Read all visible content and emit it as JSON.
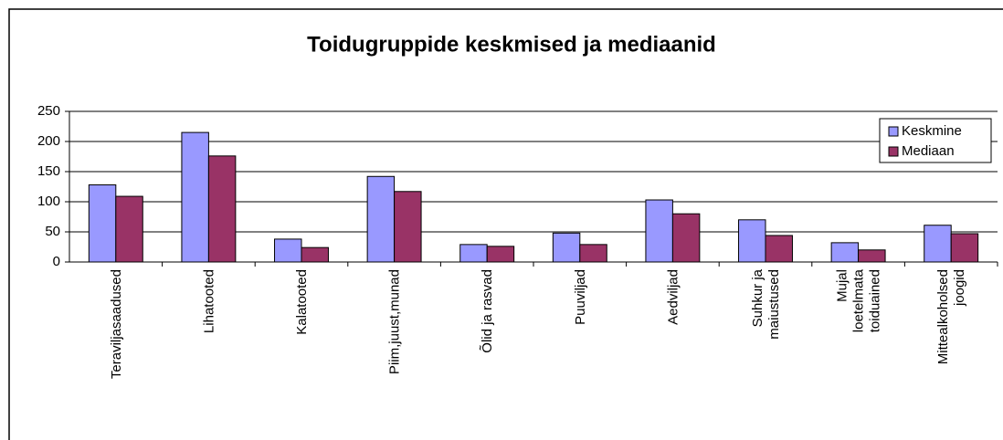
{
  "chart_data": {
    "type": "bar",
    "title": "Toidugruppide keskmised ja mediaanid",
    "categories": [
      "Teraviljasaadused",
      "Lihatooted",
      "Kalatooted",
      "Piim,juust,munad",
      "Õlid ja rasvad",
      "Puuviljad",
      "Aedviljad",
      "Suhkur ja\nmaiustused",
      "Mujal\nloetelmata\ntoiduained",
      "Mittealkoholsed\njoogid"
    ],
    "series": [
      {
        "name": "Keskmine",
        "color": "#9999ff",
        "values": [
          128,
          215,
          38,
          142,
          29,
          48,
          103,
          70,
          32,
          61
        ]
      },
      {
        "name": "Mediaan",
        "color": "#993366",
        "values": [
          109,
          176,
          24,
          117,
          26,
          29,
          80,
          44,
          20,
          47
        ]
      }
    ],
    "ylim": [
      0,
      250
    ],
    "yticks": [
      0,
      50,
      100,
      150,
      200,
      250
    ],
    "grid": true,
    "legend": "right"
  }
}
